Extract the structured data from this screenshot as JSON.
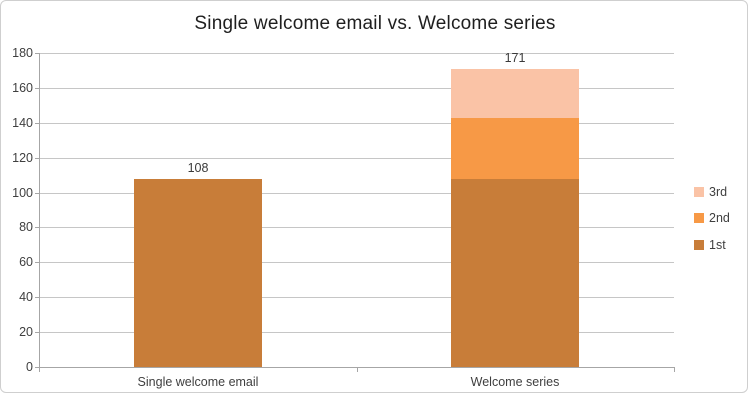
{
  "chart_data": {
    "type": "bar",
    "subtype": "stacked",
    "title": "Single welcome email vs. Welcome series",
    "categories": [
      "Single welcome email",
      "Welcome series"
    ],
    "series": [
      {
        "name": "1st",
        "color": "#C87D39",
        "values": [
          108,
          108
        ]
      },
      {
        "name": "2nd",
        "color": "#F79946",
        "values": [
          0,
          35
        ]
      },
      {
        "name": "3rd",
        "color": "#FAC3A6",
        "values": [
          0,
          28
        ]
      }
    ],
    "bar_totals": [
      108,
      171
    ],
    "bar_total_labels": [
      "108",
      "171"
    ],
    "xlabel": "",
    "ylabel": "",
    "ylim": [
      0,
      180
    ],
    "y_tick_step": 20,
    "y_tick_labels": [
      "0",
      "20",
      "40",
      "60",
      "80",
      "100",
      "120",
      "140",
      "160",
      "180"
    ],
    "grid": true,
    "legend": {
      "position": "right",
      "entries": [
        "3rd",
        "2nd",
        "1st"
      ]
    }
  },
  "style": {
    "background": "#FFFFFF",
    "frame_border_color": "#CFCFCF",
    "gridline_color": "#C6C6C6",
    "axis_color": "#A6A6A6",
    "title_color": "#1F1F1F",
    "text_color": "#3F3F3F",
    "value_label_color": "#3A3A3A",
    "series_colors": {
      "1st": "#C87D39",
      "2nd": "#F79946",
      "3rd": "#FAC3A6"
    }
  }
}
